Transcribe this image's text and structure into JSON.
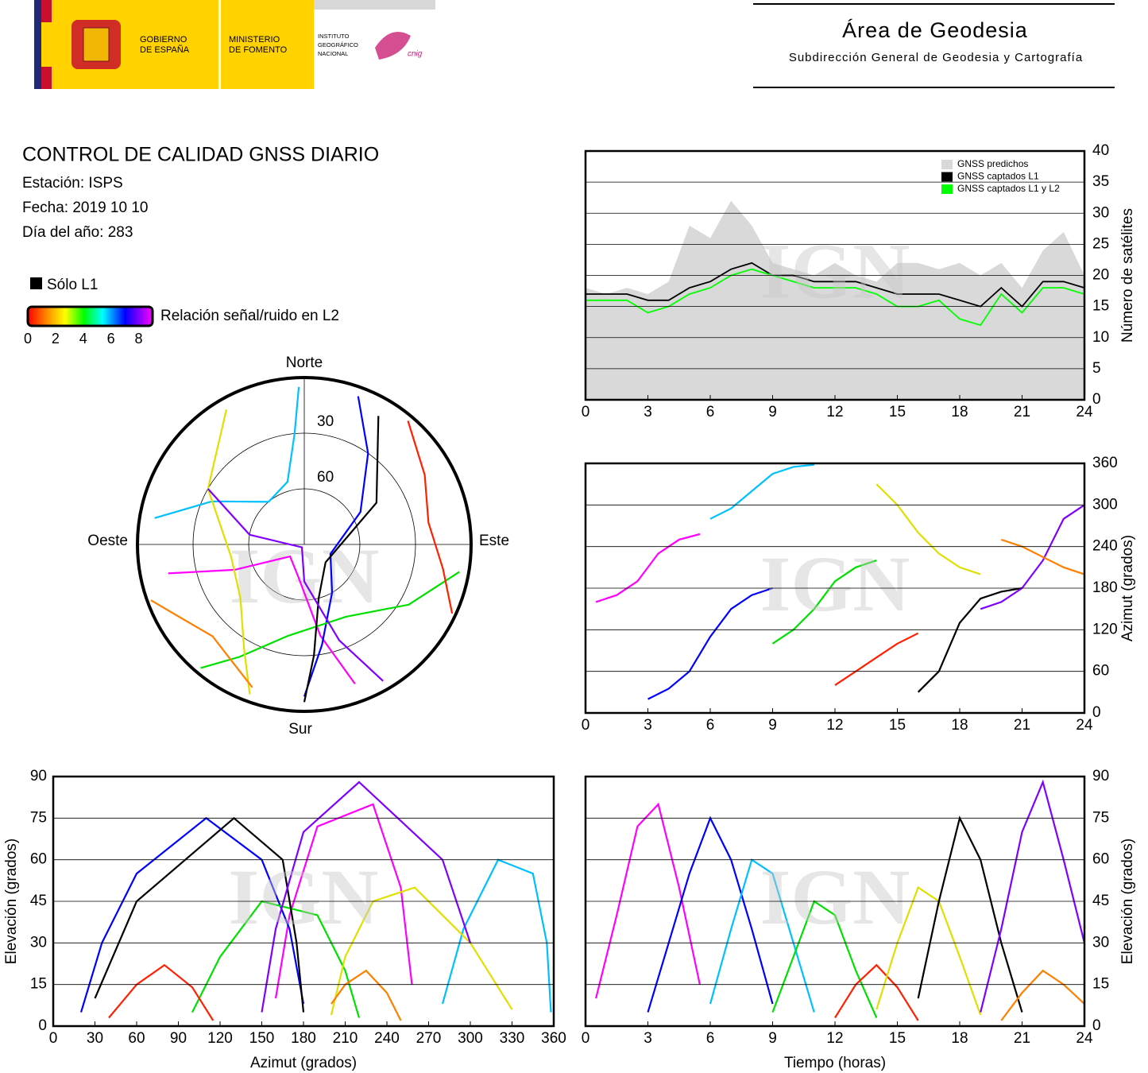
{
  "header": {
    "gobierno": [
      "GOBIERNO",
      "DE ESPAÑA"
    ],
    "ministerio": [
      "MINISTERIO",
      "DE FOMENTO"
    ],
    "instituto": [
      "INSTITUTO",
      "GEOGRÁFICO",
      "NACIONAL"
    ],
    "cnig": "cnig",
    "area": "Área de Geodesia",
    "subdireccion": "Subdirección General de Geodesia y Cartografía"
  },
  "info": {
    "title": "CONTROL DE CALIDAD GNSS DIARIO",
    "station": "Estación: ISPS",
    "date": "Fecha: 2019 10 10",
    "doy": "Día del año: 283"
  },
  "legend": {
    "l1_only": "Sólo L1",
    "snr_label": "Relación señal/ruido en L2",
    "snr_lim": [
      0,
      9
    ],
    "snr_ticks": [
      0,
      2,
      4,
      6,
      8
    ]
  },
  "watermark": "IGN",
  "chart_data": [
    {
      "type": "skyplot",
      "labels": {
        "north": "Norte",
        "south": "Sur",
        "east": "Este",
        "west": "Oeste"
      },
      "rticks": [
        30,
        60
      ],
      "series": [
        {
          "color": "#ff00ff",
          "x": [
            160,
            170,
            190,
            230,
            250,
            258
          ],
          "values": [
            10,
            40,
            72,
            80,
            50,
            15
          ]
        },
        {
          "color": "#0000ff",
          "x": [
            20,
            35,
            60,
            110,
            150,
            170,
            180
          ],
          "values": [
            5,
            30,
            55,
            75,
            60,
            35,
            8
          ]
        },
        {
          "color": "#00c0ff",
          "x": [
            280,
            295,
            320,
            345,
            355,
            358
          ],
          "values": [
            8,
            35,
            60,
            55,
            30,
            5
          ]
        },
        {
          "color": "#00e000",
          "x": [
            100,
            120,
            150,
            190,
            210,
            220
          ],
          "values": [
            5,
            25,
            45,
            40,
            20,
            3
          ]
        },
        {
          "color": "#ff2000",
          "x": [
            40,
            60,
            80,
            100,
            115
          ],
          "values": [
            3,
            15,
            22,
            14,
            2
          ]
        },
        {
          "color": "#e0e000",
          "x": [
            330,
            300,
            260,
            230,
            210,
            200
          ],
          "values": [
            6,
            30,
            50,
            45,
            25,
            4
          ]
        },
        {
          "color": "#000000",
          "x": [
            30,
            60,
            130,
            165,
            175,
            180
          ],
          "values": [
            10,
            45,
            75,
            60,
            30,
            5
          ]
        },
        {
          "color": "#8000ff",
          "x": [
            150,
            160,
            180,
            220,
            280,
            300
          ],
          "values": [
            5,
            35,
            70,
            88,
            60,
            30
          ]
        },
        {
          "color": "#ff8000",
          "x": [
            250,
            240,
            225,
            210,
            200
          ],
          "values": [
            2,
            12,
            20,
            15,
            8
          ]
        }
      ]
    },
    {
      "type": "line",
      "ylabel": "Número de satélites",
      "xlim": [
        0,
        24
      ],
      "xticks": [
        0,
        3,
        6,
        9,
        12,
        15,
        18,
        21,
        24
      ],
      "ylim": [
        0,
        40
      ],
      "yticks": [
        0,
        5,
        10,
        15,
        20,
        25,
        30,
        35,
        40
      ],
      "grid": true,
      "legend": "upper right",
      "x": [
        0,
        1,
        2,
        3,
        4,
        5,
        6,
        7,
        8,
        9,
        10,
        11,
        12,
        13,
        14,
        15,
        16,
        17,
        18,
        19,
        20,
        21,
        22,
        23,
        24
      ],
      "series": [
        {
          "name": "GNSS predichos",
          "color": "#d9d9d9",
          "area": true,
          "values": [
            18,
            17,
            18,
            17,
            19,
            28,
            26,
            32,
            28,
            22,
            21,
            20,
            22,
            20,
            19,
            22,
            22,
            21,
            22,
            20,
            22,
            18,
            24,
            27,
            20
          ]
        },
        {
          "name": "GNSS captados L1",
          "color": "#000000",
          "values": [
            17,
            17,
            17,
            16,
            16,
            18,
            19,
            21,
            22,
            20,
            20,
            19,
            19,
            19,
            18,
            17,
            17,
            17,
            16,
            15,
            18,
            15,
            19,
            19,
            18
          ]
        },
        {
          "name": "GNSS captados L1 y L2",
          "color": "#00ff00",
          "values": [
            16,
            16,
            16,
            14,
            15,
            17,
            18,
            20,
            21,
            20,
            19,
            18,
            18,
            18,
            17,
            15,
            15,
            16,
            13,
            12,
            17,
            14,
            18,
            18,
            17
          ]
        }
      ]
    },
    {
      "type": "line",
      "ylabel": "Azimut (grados)",
      "xlim": [
        0,
        24
      ],
      "xticks": [
        0,
        3,
        6,
        9,
        12,
        15,
        18,
        21,
        24
      ],
      "ylim": [
        0,
        360
      ],
      "yticks": [
        0,
        60,
        120,
        180,
        240,
        300,
        360
      ],
      "grid": true,
      "series": [
        {
          "color": "#ff00ff",
          "x": [
            0.5,
            1.5,
            2.5,
            3.5,
            4.5,
            5.5
          ],
          "values": [
            160,
            170,
            190,
            230,
            250,
            258
          ]
        },
        {
          "color": "#0000ff",
          "x": [
            3,
            4,
            5,
            6,
            7,
            8,
            9
          ],
          "values": [
            20,
            35,
            60,
            110,
            150,
            170,
            180
          ]
        },
        {
          "color": "#00c0ff",
          "x": [
            6,
            7,
            8,
            9,
            10,
            11
          ],
          "values": [
            280,
            295,
            320,
            345,
            355,
            358
          ]
        },
        {
          "color": "#00e000",
          "x": [
            9,
            10,
            11,
            12,
            13,
            14
          ],
          "values": [
            100,
            120,
            150,
            190,
            210,
            220
          ]
        },
        {
          "color": "#ff2000",
          "x": [
            12,
            13,
            14,
            15,
            16
          ],
          "values": [
            40,
            60,
            80,
            100,
            115
          ]
        },
        {
          "color": "#e0e000",
          "x": [
            14,
            15,
            16,
            17,
            18,
            19
          ],
          "values": [
            330,
            300,
            260,
            230,
            210,
            200
          ]
        },
        {
          "color": "#000000",
          "x": [
            16,
            17,
            18,
            19,
            20,
            21
          ],
          "values": [
            30,
            60,
            130,
            165,
            175,
            180
          ]
        },
        {
          "color": "#8000ff",
          "x": [
            19,
            20,
            21,
            22,
            23,
            24
          ],
          "values": [
            150,
            160,
            180,
            220,
            280,
            300
          ]
        },
        {
          "color": "#ff8000",
          "x": [
            20,
            21,
            22,
            23,
            24
          ],
          "values": [
            250,
            240,
            225,
            210,
            200
          ]
        }
      ]
    },
    {
      "type": "line",
      "xlabel": "Azimut (grados)",
      "ylabel": "Elevación (grados)",
      "xlim": [
        0,
        360
      ],
      "xticks": [
        0,
        30,
        60,
        90,
        120,
        150,
        180,
        210,
        240,
        270,
        300,
        330,
        360
      ],
      "ylim": [
        0,
        90
      ],
      "yticks": [
        0,
        15,
        30,
        45,
        60,
        75,
        90
      ],
      "grid": true,
      "series": [
        {
          "color": "#ff00ff",
          "x": [
            160,
            170,
            190,
            230,
            250,
            258
          ],
          "values": [
            10,
            40,
            72,
            80,
            50,
            15
          ]
        },
        {
          "color": "#0000ff",
          "x": [
            20,
            35,
            60,
            110,
            150,
            170,
            180
          ],
          "values": [
            5,
            30,
            55,
            75,
            60,
            35,
            8
          ]
        },
        {
          "color": "#00c0ff",
          "x": [
            280,
            295,
            320,
            345,
            355,
            358
          ],
          "values": [
            8,
            35,
            60,
            55,
            30,
            5
          ]
        },
        {
          "color": "#00e000",
          "x": [
            100,
            120,
            150,
            190,
            210,
            220
          ],
          "values": [
            5,
            25,
            45,
            40,
            20,
            3
          ]
        },
        {
          "color": "#ff2000",
          "x": [
            40,
            60,
            80,
            100,
            115
          ],
          "values": [
            3,
            15,
            22,
            14,
            2
          ]
        },
        {
          "color": "#e0e000",
          "x": [
            330,
            300,
            260,
            230,
            210,
            200
          ],
          "values": [
            6,
            30,
            50,
            45,
            25,
            4
          ]
        },
        {
          "color": "#000000",
          "x": [
            30,
            60,
            130,
            165,
            175,
            180
          ],
          "values": [
            10,
            45,
            75,
            60,
            30,
            5
          ]
        },
        {
          "color": "#8000ff",
          "x": [
            150,
            160,
            180,
            220,
            280,
            300
          ],
          "values": [
            5,
            35,
            70,
            88,
            60,
            30
          ]
        },
        {
          "color": "#ff8000",
          "x": [
            250,
            240,
            225,
            210,
            200
          ],
          "values": [
            2,
            12,
            20,
            15,
            8
          ]
        }
      ]
    },
    {
      "type": "line",
      "xlabel": "Tiempo (horas)",
      "ylabel": "Elevación (grados)",
      "xlim": [
        0,
        24
      ],
      "xticks": [
        0,
        3,
        6,
        9,
        12,
        15,
        18,
        21,
        24
      ],
      "ylim": [
        0,
        90
      ],
      "yticks": [
        0,
        15,
        30,
        45,
        60,
        75,
        90
      ],
      "grid": true,
      "series": [
        {
          "color": "#ff00ff",
          "x": [
            0.5,
            1.5,
            2.5,
            3.5,
            4.5,
            5.5
          ],
          "values": [
            10,
            40,
            72,
            80,
            50,
            15
          ]
        },
        {
          "color": "#0000ff",
          "x": [
            3,
            4,
            5,
            6,
            7,
            8,
            9
          ],
          "values": [
            5,
            30,
            55,
            75,
            60,
            35,
            8
          ]
        },
        {
          "color": "#00c0ff",
          "x": [
            6,
            7,
            8,
            9,
            10,
            11
          ],
          "values": [
            8,
            35,
            60,
            55,
            30,
            5
          ]
        },
        {
          "color": "#00e000",
          "x": [
            9,
            10,
            11,
            12,
            13,
            14
          ],
          "values": [
            5,
            25,
            45,
            40,
            20,
            3
          ]
        },
        {
          "color": "#ff2000",
          "x": [
            12,
            13,
            14,
            15,
            16
          ],
          "values": [
            3,
            15,
            22,
            14,
            2
          ]
        },
        {
          "color": "#e0e000",
          "x": [
            14,
            15,
            16,
            17,
            18,
            19
          ],
          "values": [
            6,
            30,
            50,
            45,
            25,
            4
          ]
        },
        {
          "color": "#000000",
          "x": [
            16,
            17,
            18,
            19,
            20,
            21
          ],
          "values": [
            10,
            45,
            75,
            60,
            30,
            5
          ]
        },
        {
          "color": "#8000ff",
          "x": [
            19,
            20,
            21,
            22,
            23,
            24
          ],
          "values": [
            5,
            35,
            70,
            88,
            60,
            30
          ]
        },
        {
          "color": "#ff8000",
          "x": [
            20,
            21,
            22,
            23,
            24
          ],
          "values": [
            2,
            12,
            20,
            15,
            8
          ]
        }
      ]
    }
  ]
}
